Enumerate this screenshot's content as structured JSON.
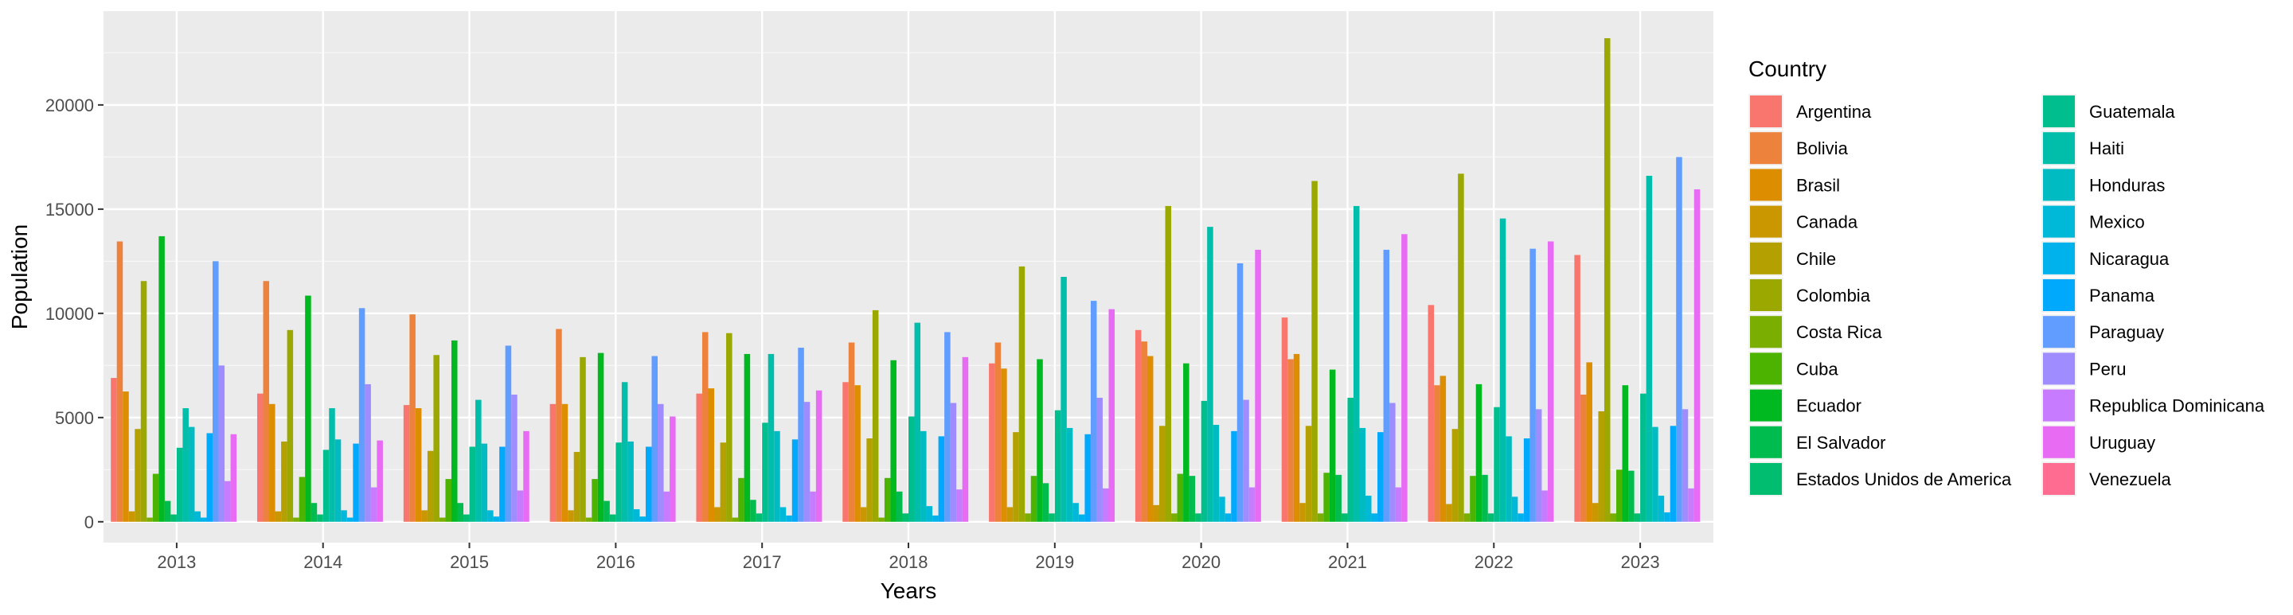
{
  "chart_data": {
    "type": "bar",
    "xlabel": "Years",
    "ylabel": "Population",
    "ylim": [
      -1000,
      24500
    ],
    "yticks": [
      0,
      5000,
      10000,
      15000,
      20000
    ],
    "ytick_labels": [
      "0",
      "5000",
      "10000",
      "15000",
      "20000"
    ],
    "grid": true,
    "legend_placement": "right",
    "legend_title": "Country",
    "categories": [
      "2013",
      "2014",
      "2015",
      "2016",
      "2017",
      "2018",
      "2019",
      "2020",
      "2021",
      "2022",
      "2023"
    ],
    "series": [
      {
        "name": "Argentina",
        "color": "#F8766D",
        "values": [
          6900,
          6150,
          5600,
          5650,
          6150,
          6700,
          7600,
          9200,
          9800,
          10400,
          12800
        ]
      },
      {
        "name": "Bolivia",
        "color": "#EC823C",
        "values": [
          13450,
          11550,
          9950,
          9250,
          9100,
          8600,
          8600,
          8650,
          7800,
          6550,
          6100
        ]
      },
      {
        "name": "Brasil",
        "color": "#DD8D00",
        "values": [
          6250,
          5650,
          5450,
          5650,
          6400,
          6550,
          7350,
          7950,
          8050,
          7000,
          7650
        ]
      },
      {
        "name": "Canada",
        "color": "#CA9700",
        "values": [
          500,
          500,
          550,
          550,
          700,
          700,
          700,
          800,
          900,
          850,
          900
        ]
      },
      {
        "name": "Chile",
        "color": "#B4A000",
        "values": [
          4450,
          3850,
          3400,
          3350,
          3800,
          4000,
          4300,
          4600,
          4600,
          4450,
          5300
        ]
      },
      {
        "name": "Colombia",
        "color": "#9AA800",
        "values": [
          11550,
          9200,
          8000,
          7900,
          9050,
          10150,
          12250,
          15150,
          16350,
          16700,
          23200
        ]
      },
      {
        "name": "Costa Rica",
        "color": "#7AAE00",
        "values": [
          200,
          200,
          200,
          200,
          200,
          200,
          400,
          400,
          400,
          400,
          400
        ]
      },
      {
        "name": "Cuba",
        "color": "#4CB400",
        "values": [
          2300,
          2150,
          2050,
          2050,
          2100,
          2100,
          2200,
          2300,
          2350,
          2200,
          2500
        ]
      },
      {
        "name": "Ecuador",
        "color": "#00B81F",
        "values": [
          13700,
          10850,
          8700,
          8100,
          8050,
          7750,
          7800,
          7600,
          7300,
          6600,
          6550
        ]
      },
      {
        "name": "El Salvador",
        "color": "#00BB4E",
        "values": [
          1000,
          900,
          900,
          1000,
          1050,
          1450,
          1850,
          2200,
          2250,
          2250,
          2450
        ]
      },
      {
        "name": "Estados Unidos de America",
        "color": "#00BD70",
        "values": [
          350,
          350,
          350,
          350,
          400,
          400,
          400,
          400,
          400,
          400,
          400
        ]
      },
      {
        "name": "Guatemala",
        "color": "#00BE8E",
        "values": [
          3550,
          3450,
          3600,
          3800,
          4750,
          5050,
          5350,
          5800,
          5950,
          5500,
          6150
        ]
      },
      {
        "name": "Haiti",
        "color": "#00BEA9",
        "values": [
          5450,
          5450,
          5850,
          6700,
          8050,
          9550,
          11750,
          14150,
          15150,
          14550,
          16600
        ]
      },
      {
        "name": "Honduras",
        "color": "#00BCC2",
        "values": [
          4550,
          3950,
          3750,
          3850,
          4350,
          4350,
          4500,
          4650,
          4500,
          4100,
          4550
        ]
      },
      {
        "name": "Mexico",
        "color": "#00B8D8",
        "values": [
          500,
          550,
          550,
          600,
          700,
          750,
          900,
          1200,
          1250,
          1200,
          1250
        ]
      },
      {
        "name": "Nicaragua",
        "color": "#00B2EB",
        "values": [
          200,
          200,
          250,
          250,
          300,
          300,
          350,
          400,
          400,
          400,
          450
        ]
      },
      {
        "name": "Panama",
        "color": "#00A9FB",
        "values": [
          4250,
          3750,
          3600,
          3600,
          3950,
          4100,
          4200,
          4350,
          4300,
          4000,
          4600
        ]
      },
      {
        "name": "Paraguay",
        "color": "#619CFF",
        "values": [
          12500,
          10250,
          8450,
          7950,
          8350,
          9100,
          10600,
          12400,
          13050,
          13100,
          17500
        ]
      },
      {
        "name": "Peru",
        "color": "#9F8CFF",
        "values": [
          7500,
          6600,
          6100,
          5650,
          5750,
          5700,
          5950,
          5850,
          5700,
          5400,
          5400
        ]
      },
      {
        "name": "Republica Dominicana",
        "color": "#C77CFF",
        "values": [
          1950,
          1650,
          1500,
          1450,
          1450,
          1550,
          1600,
          1650,
          1650,
          1500,
          1600
        ]
      },
      {
        "name": "Uruguay",
        "color": "#E76BF3",
        "values": [
          4200,
          3900,
          4350,
          5050,
          6300,
          7900,
          10200,
          13050,
          13800,
          13450,
          15950
        ]
      },
      {
        "name": "Venezuela",
        "color": "#FF6C91",
        "values": [
          0,
          0,
          0,
          0,
          0,
          0,
          0,
          0,
          0,
          0,
          0
        ]
      }
    ]
  }
}
